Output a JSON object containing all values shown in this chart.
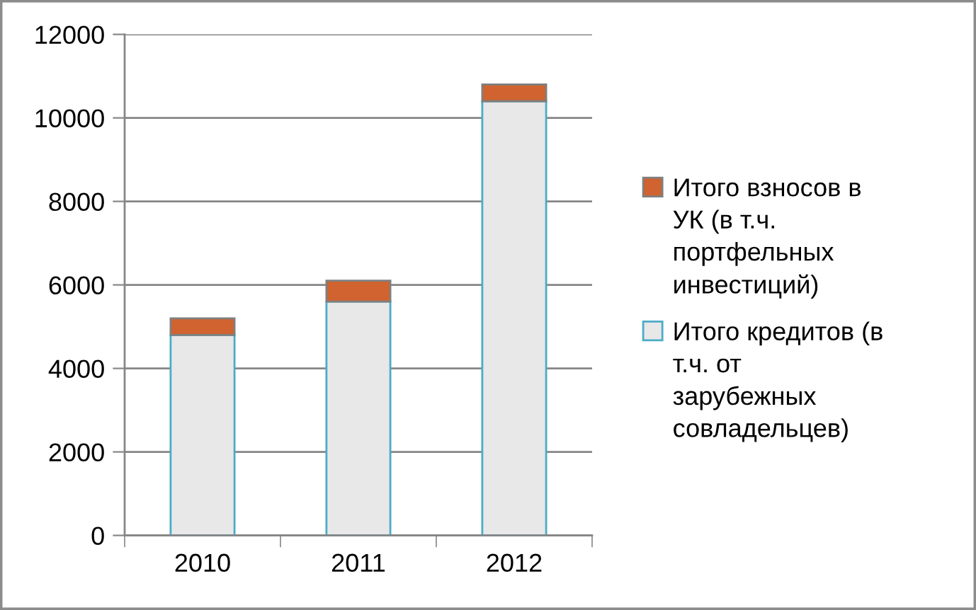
{
  "chart_data": {
    "type": "bar",
    "stacked": true,
    "categories": [
      "2010",
      "2011",
      "2012"
    ],
    "series": [
      {
        "name": "Итого кредитов (в т.ч. от зарубежных совладельцев)",
        "color": "#e8e8e8",
        "values": [
          4800,
          5600,
          10400
        ]
      },
      {
        "name": "Итого взносов в УК (в т.ч. портфельных инвестиций)",
        "color": "#d0632f",
        "values": [
          400,
          500,
          400
        ]
      }
    ],
    "ylim": [
      0,
      12000
    ],
    "yticks": [
      0,
      2000,
      4000,
      6000,
      8000,
      10000,
      12000
    ],
    "grid": "y",
    "legend": "right"
  }
}
